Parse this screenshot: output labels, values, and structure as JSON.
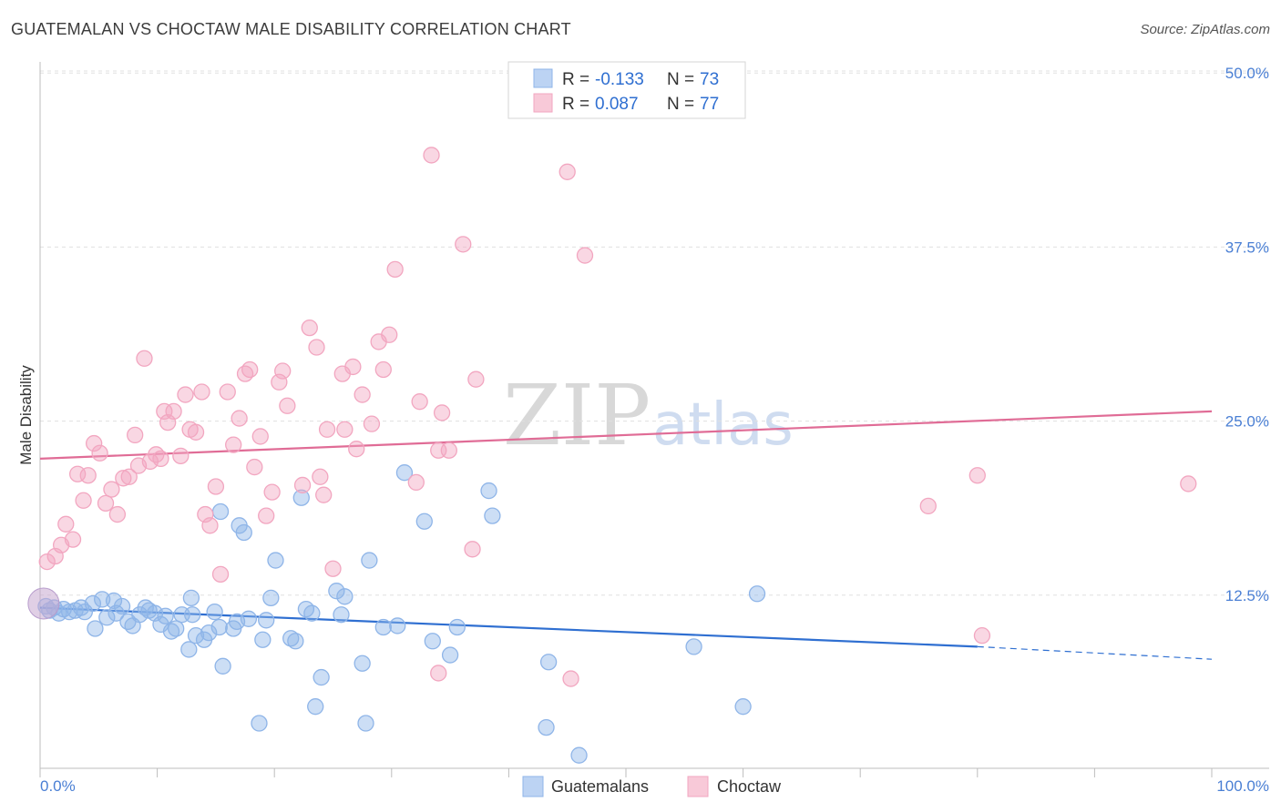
{
  "title": "GUATEMALAN VS CHOCTAW MALE DISABILITY CORRELATION CHART",
  "source": "Source: ZipAtlas.com",
  "legend": [
    {
      "r_label": "R =",
      "r_value": "-0.133",
      "n_label": "N =",
      "n_value": "73"
    },
    {
      "r_label": "R =",
      "r_value": "0.087",
      "n_label": "N =",
      "n_value": "77"
    }
  ],
  "bottom_legend": [
    "Guatemalans",
    "Choctaw"
  ],
  "watermark": {
    "zip": "ZIP",
    "atlas": "atlas"
  },
  "colors": {
    "guatemalans": "#8fb5e8",
    "guatemalans_line": "#2f6fd1",
    "choctaw": "#f2a6c0",
    "choctaw_line": "#e06c96",
    "tick_label": "#4a7fd4"
  },
  "chart_data": {
    "type": "scatter",
    "title": "GUATEMALAN VS CHOCTAW MALE DISABILITY CORRELATION CHART",
    "xlabel": "",
    "ylabel": "Male Disability",
    "xlim": [
      0,
      100
    ],
    "ylim": [
      0,
      52.5
    ],
    "x_tick_labels": [
      "0.0%",
      "100.0%"
    ],
    "y_ticks": [
      12.5,
      25.0,
      37.5,
      50.0
    ],
    "y_tick_labels": [
      "12.5%",
      "25.0%",
      "37.5%",
      "50.0%"
    ],
    "grid": true,
    "legend_position": "top-center",
    "series": [
      {
        "name": "Guatemalans",
        "trend": {
          "x": [
            0,
            80
          ],
          "y": [
            11.6,
            8.8
          ],
          "dashed_to": {
            "x": 100,
            "y": 7.9
          }
        },
        "points": [
          [
            0.5,
            11.7
          ],
          [
            0.8,
            11.4
          ],
          [
            1.2,
            11.6
          ],
          [
            1.6,
            11.2
          ],
          [
            2.0,
            11.5
          ],
          [
            2.5,
            11.3
          ],
          [
            3.0,
            11.4
          ],
          [
            3.5,
            11.6
          ],
          [
            3.8,
            11.3
          ],
          [
            4.5,
            11.9
          ],
          [
            4.7,
            10.1
          ],
          [
            5.3,
            12.2
          ],
          [
            5.7,
            10.9
          ],
          [
            6.3,
            12.1
          ],
          [
            6.5,
            11.2
          ],
          [
            7.0,
            11.7
          ],
          [
            7.5,
            10.6
          ],
          [
            7.9,
            10.3
          ],
          [
            8.5,
            11.1
          ],
          [
            9.0,
            11.6
          ],
          [
            9.3,
            11.4
          ],
          [
            9.8,
            11.2
          ],
          [
            10.3,
            10.4
          ],
          [
            10.7,
            11.0
          ],
          [
            11.2,
            9.9
          ],
          [
            11.6,
            10.1
          ],
          [
            12.1,
            11.1
          ],
          [
            12.7,
            8.6
          ],
          [
            12.9,
            12.3
          ],
          [
            13.0,
            11.1
          ],
          [
            13.3,
            9.6
          ],
          [
            14.0,
            9.3
          ],
          [
            14.4,
            9.8
          ],
          [
            14.9,
            11.3
          ],
          [
            15.3,
            10.2
          ],
          [
            15.4,
            18.5
          ],
          [
            15.6,
            7.4
          ],
          [
            16.5,
            10.1
          ],
          [
            16.8,
            10.6
          ],
          [
            17.0,
            17.5
          ],
          [
            17.4,
            17.0
          ],
          [
            17.8,
            10.8
          ],
          [
            18.7,
            3.3
          ],
          [
            19.0,
            9.3
          ],
          [
            19.3,
            10.7
          ],
          [
            19.7,
            12.3
          ],
          [
            20.1,
            15.0
          ],
          [
            21.4,
            9.4
          ],
          [
            21.8,
            9.2
          ],
          [
            22.3,
            19.5
          ],
          [
            22.7,
            11.5
          ],
          [
            23.2,
            11.2
          ],
          [
            23.5,
            4.5
          ],
          [
            24.0,
            6.6
          ],
          [
            25.3,
            12.8
          ],
          [
            25.7,
            11.1
          ],
          [
            26.0,
            12.4
          ],
          [
            27.5,
            7.6
          ],
          [
            27.8,
            3.3
          ],
          [
            28.1,
            15.0
          ],
          [
            29.3,
            10.2
          ],
          [
            30.5,
            10.3
          ],
          [
            31.1,
            21.3
          ],
          [
            32.8,
            17.8
          ],
          [
            33.5,
            9.2
          ],
          [
            35.0,
            8.2
          ],
          [
            35.6,
            10.2
          ],
          [
            38.3,
            20.0
          ],
          [
            38.6,
            18.2
          ],
          [
            43.2,
            3.0
          ],
          [
            43.4,
            7.7
          ],
          [
            46.0,
            1.0
          ],
          [
            55.8,
            8.8
          ],
          [
            60.0,
            4.5
          ],
          [
            61.2,
            12.6
          ]
        ]
      },
      {
        "name": "Choctaw",
        "trend": {
          "x": [
            0,
            100
          ],
          "y": [
            22.3,
            25.7
          ]
        },
        "points": [
          [
            0.6,
            14.9
          ],
          [
            1.3,
            15.3
          ],
          [
            1.8,
            16.1
          ],
          [
            2.2,
            17.6
          ],
          [
            2.8,
            16.5
          ],
          [
            3.2,
            21.2
          ],
          [
            3.7,
            19.3
          ],
          [
            4.1,
            21.1
          ],
          [
            4.6,
            23.4
          ],
          [
            5.1,
            22.7
          ],
          [
            5.6,
            19.1
          ],
          [
            6.1,
            20.1
          ],
          [
            6.6,
            18.3
          ],
          [
            7.1,
            20.9
          ],
          [
            7.6,
            21.0
          ],
          [
            8.1,
            24.0
          ],
          [
            8.4,
            21.8
          ],
          [
            8.9,
            29.5
          ],
          [
            9.4,
            22.1
          ],
          [
            9.9,
            22.6
          ],
          [
            10.3,
            22.3
          ],
          [
            10.6,
            25.7
          ],
          [
            10.9,
            24.9
          ],
          [
            11.4,
            25.7
          ],
          [
            12.0,
            22.5
          ],
          [
            12.4,
            26.9
          ],
          [
            12.8,
            24.4
          ],
          [
            13.3,
            24.2
          ],
          [
            13.8,
            27.1
          ],
          [
            14.1,
            18.3
          ],
          [
            14.5,
            17.5
          ],
          [
            15.0,
            20.3
          ],
          [
            15.4,
            14.0
          ],
          [
            16.0,
            27.1
          ],
          [
            16.5,
            23.3
          ],
          [
            17.0,
            25.2
          ],
          [
            17.5,
            28.4
          ],
          [
            17.9,
            28.7
          ],
          [
            18.3,
            21.7
          ],
          [
            18.8,
            23.9
          ],
          [
            19.3,
            18.2
          ],
          [
            19.8,
            19.9
          ],
          [
            20.4,
            27.8
          ],
          [
            20.7,
            28.6
          ],
          [
            21.1,
            26.1
          ],
          [
            22.4,
            20.4
          ],
          [
            23.0,
            31.7
          ],
          [
            23.6,
            30.3
          ],
          [
            23.9,
            21.0
          ],
          [
            24.2,
            19.7
          ],
          [
            24.5,
            24.4
          ],
          [
            25.0,
            14.4
          ],
          [
            25.8,
            28.4
          ],
          [
            26.0,
            24.4
          ],
          [
            26.7,
            28.9
          ],
          [
            27.0,
            23.0
          ],
          [
            27.5,
            26.9
          ],
          [
            28.3,
            24.8
          ],
          [
            28.9,
            30.7
          ],
          [
            29.3,
            28.7
          ],
          [
            29.8,
            31.2
          ],
          [
            30.3,
            35.9
          ],
          [
            32.1,
            20.6
          ],
          [
            32.4,
            26.4
          ],
          [
            33.4,
            44.1
          ],
          [
            34.0,
            22.9
          ],
          [
            34.3,
            25.6
          ],
          [
            34.9,
            22.9
          ],
          [
            36.1,
            37.7
          ],
          [
            36.9,
            15.8
          ],
          [
            37.2,
            28.0
          ],
          [
            45.0,
            42.9
          ],
          [
            45.3,
            6.5
          ],
          [
            46.5,
            36.9
          ],
          [
            75.8,
            18.9
          ],
          [
            80.0,
            21.1
          ],
          [
            80.4,
            9.6
          ],
          [
            98.0,
            20.5
          ],
          [
            34.0,
            6.9
          ]
        ]
      }
    ]
  }
}
